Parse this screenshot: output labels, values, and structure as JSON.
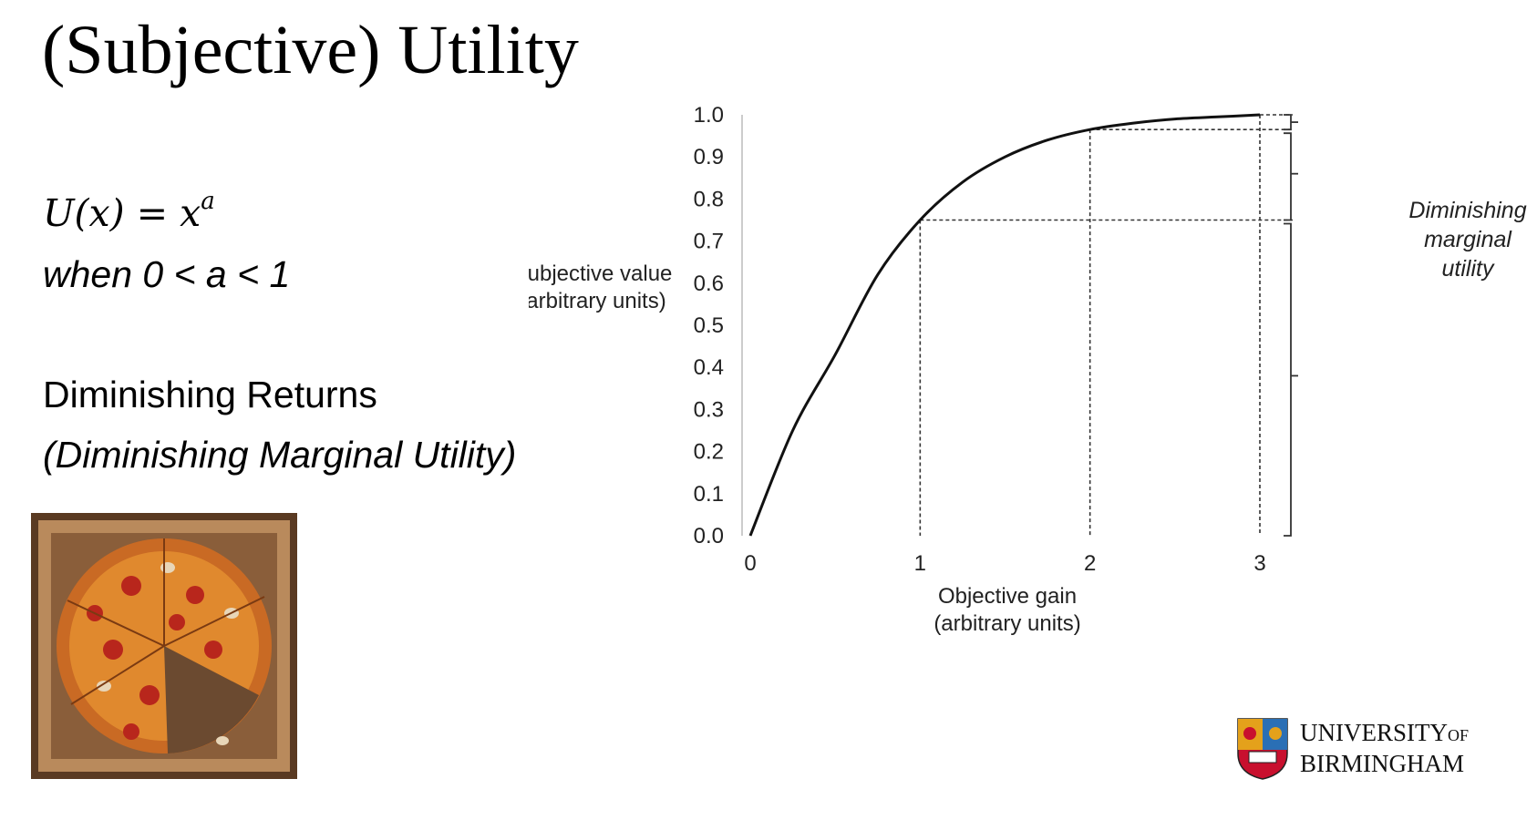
{
  "slide": {
    "title": "(Subjective) Utility",
    "formula_lhs": "U(x) = x",
    "formula_exp": "a",
    "condition": "when 0 < a < 1",
    "heading": "Diminishing Returns",
    "subheading": "(Diminishing Marginal Utility)"
  },
  "image": {
    "description_icon": "pizza-icon"
  },
  "logo": {
    "line1": "UNIVERSITY",
    "line1_suffix": "OF",
    "line2": "BIRMINGHAM"
  },
  "chart_data": {
    "type": "line",
    "ylabel": [
      "Subjective value",
      "(arbitrary units)"
    ],
    "xlabel": [
      "Objective gain",
      "(arbitrary units)"
    ],
    "xlim": [
      0,
      3
    ],
    "ylim": [
      0,
      1
    ],
    "x_ticks": [
      0,
      1,
      2,
      3
    ],
    "x_tick_labels": [
      "0",
      "1",
      "2",
      "3"
    ],
    "y_ticks": [
      0,
      0.1,
      0.2,
      0.3,
      0.4,
      0.5,
      0.6,
      0.7,
      0.8,
      0.9,
      1.0
    ],
    "y_tick_labels": [
      "0.0",
      "0.1",
      "0.2",
      "0.3",
      "0.4",
      "0.5",
      "0.6",
      "0.7",
      "0.8",
      "0.9",
      "1.0"
    ],
    "series": [
      {
        "x": [
          0,
          0.25,
          0.5,
          0.75,
          1.0,
          1.25,
          1.5,
          1.75,
          2.0,
          2.25,
          2.5,
          2.75,
          3.0
        ],
        "y": [
          0,
          0.25,
          0.43,
          0.62,
          0.75,
          0.84,
          0.9,
          0.94,
          0.965,
          0.98,
          0.99,
          0.995,
          1.0
        ]
      }
    ],
    "reference_points": [
      {
        "x": 1,
        "y": 0.75
      },
      {
        "x": 2,
        "y": 0.965
      },
      {
        "x": 3,
        "y": 1.0
      }
    ],
    "annotation": [
      "Diminishing",
      "marginal",
      "utility"
    ],
    "grid": false
  }
}
